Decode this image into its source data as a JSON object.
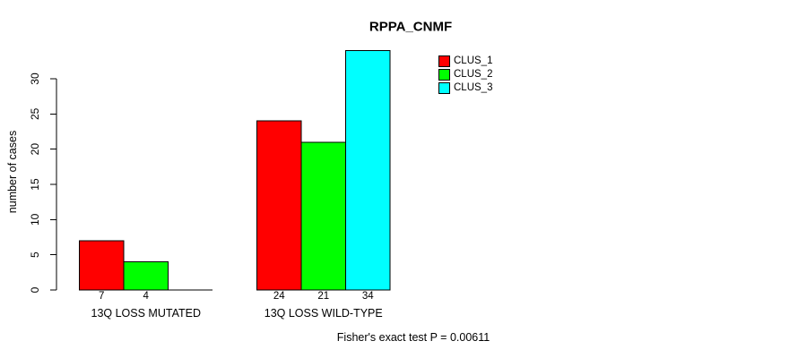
{
  "chart_data": {
    "type": "bar",
    "title": "RPPA_CNMF",
    "ylabel": "number of cases",
    "xlabel": "",
    "categories": [
      "13Q LOSS MUTATED",
      "13Q LOSS WILD-TYPE"
    ],
    "series": [
      {
        "name": "CLUS_1",
        "color": "#ff0000",
        "values": [
          7,
          24
        ]
      },
      {
        "name": "CLUS_2",
        "color": "#00ff00",
        "values": [
          4,
          21
        ]
      },
      {
        "name": "CLUS_3",
        "color": "#00ffff",
        "values": [
          0,
          34
        ]
      }
    ],
    "yticks": [
      0,
      5,
      10,
      15,
      20,
      25,
      30
    ],
    "ylim": [
      0,
      34
    ],
    "grid": false,
    "legend_position": "top-right",
    "show_bar_values": true,
    "zero_bars_shown_as_baseline": true,
    "caption": "Fisher's exact test P = 0.00611",
    "axis_color": "#000000",
    "background_color": "#ffffff"
  }
}
